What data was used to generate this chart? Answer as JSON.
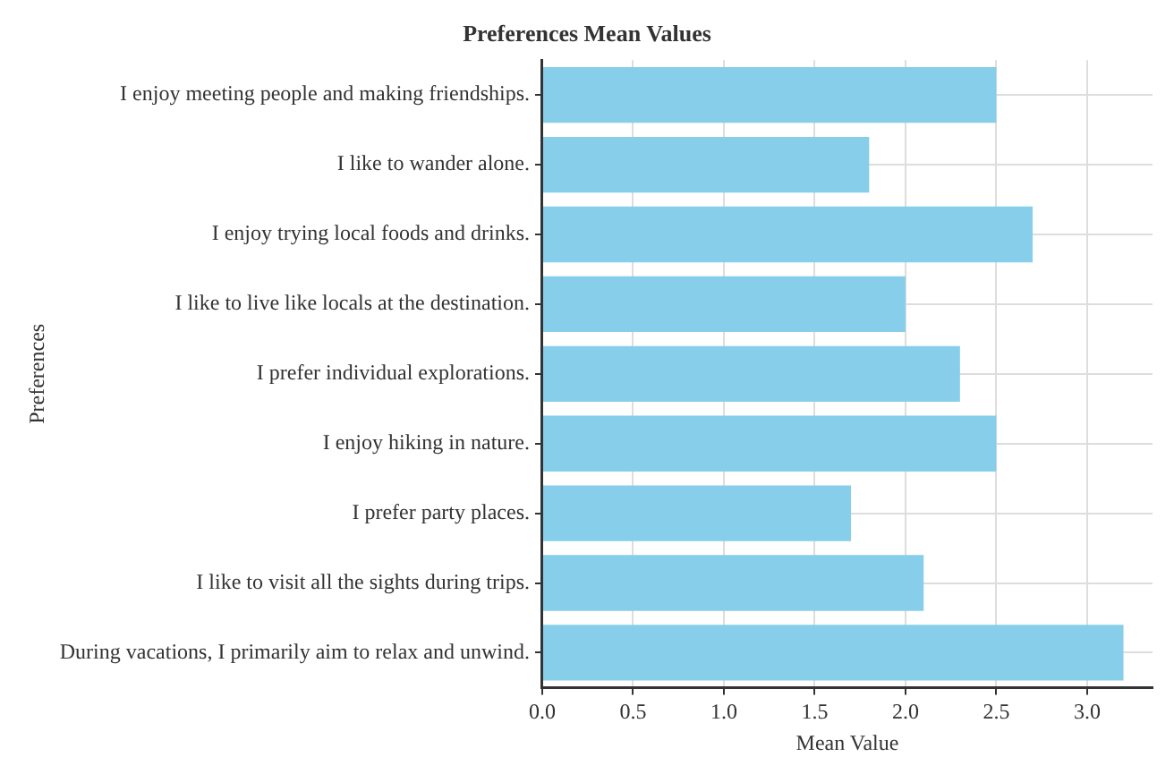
{
  "chart_data": {
    "type": "bar",
    "orientation": "horizontal",
    "title": "Preferences Mean Values",
    "xlabel": "Mean Value",
    "ylabel": "Preferences",
    "categories": [
      "I enjoy meeting people and making friendships.",
      "I like to wander alone.",
      "I enjoy trying local foods and drinks.",
      "I like to live like locals at the destination.",
      "I prefer individual explorations.",
      "I enjoy hiking in nature.",
      "I prefer party places.",
      "I like to visit all the sights during trips.",
      "During vacations, I primarily aim to relax and unwind."
    ],
    "values": [
      2.5,
      1.8,
      2.7,
      2.0,
      2.3,
      2.5,
      1.7,
      2.1,
      3.2
    ],
    "color": "#87ceeb",
    "xlim": [
      0,
      3.36
    ],
    "xticks": [
      {
        "value": 0,
        "label": "0.0"
      },
      {
        "value": 0.5,
        "label": "0.5"
      },
      {
        "value": 1,
        "label": "1.0"
      },
      {
        "value": 1.5,
        "label": "1.5"
      },
      {
        "value": 2,
        "label": "2.0"
      },
      {
        "value": 2.5,
        "label": "2.5"
      },
      {
        "value": 3,
        "label": "3.0"
      }
    ],
    "grid": true
  }
}
